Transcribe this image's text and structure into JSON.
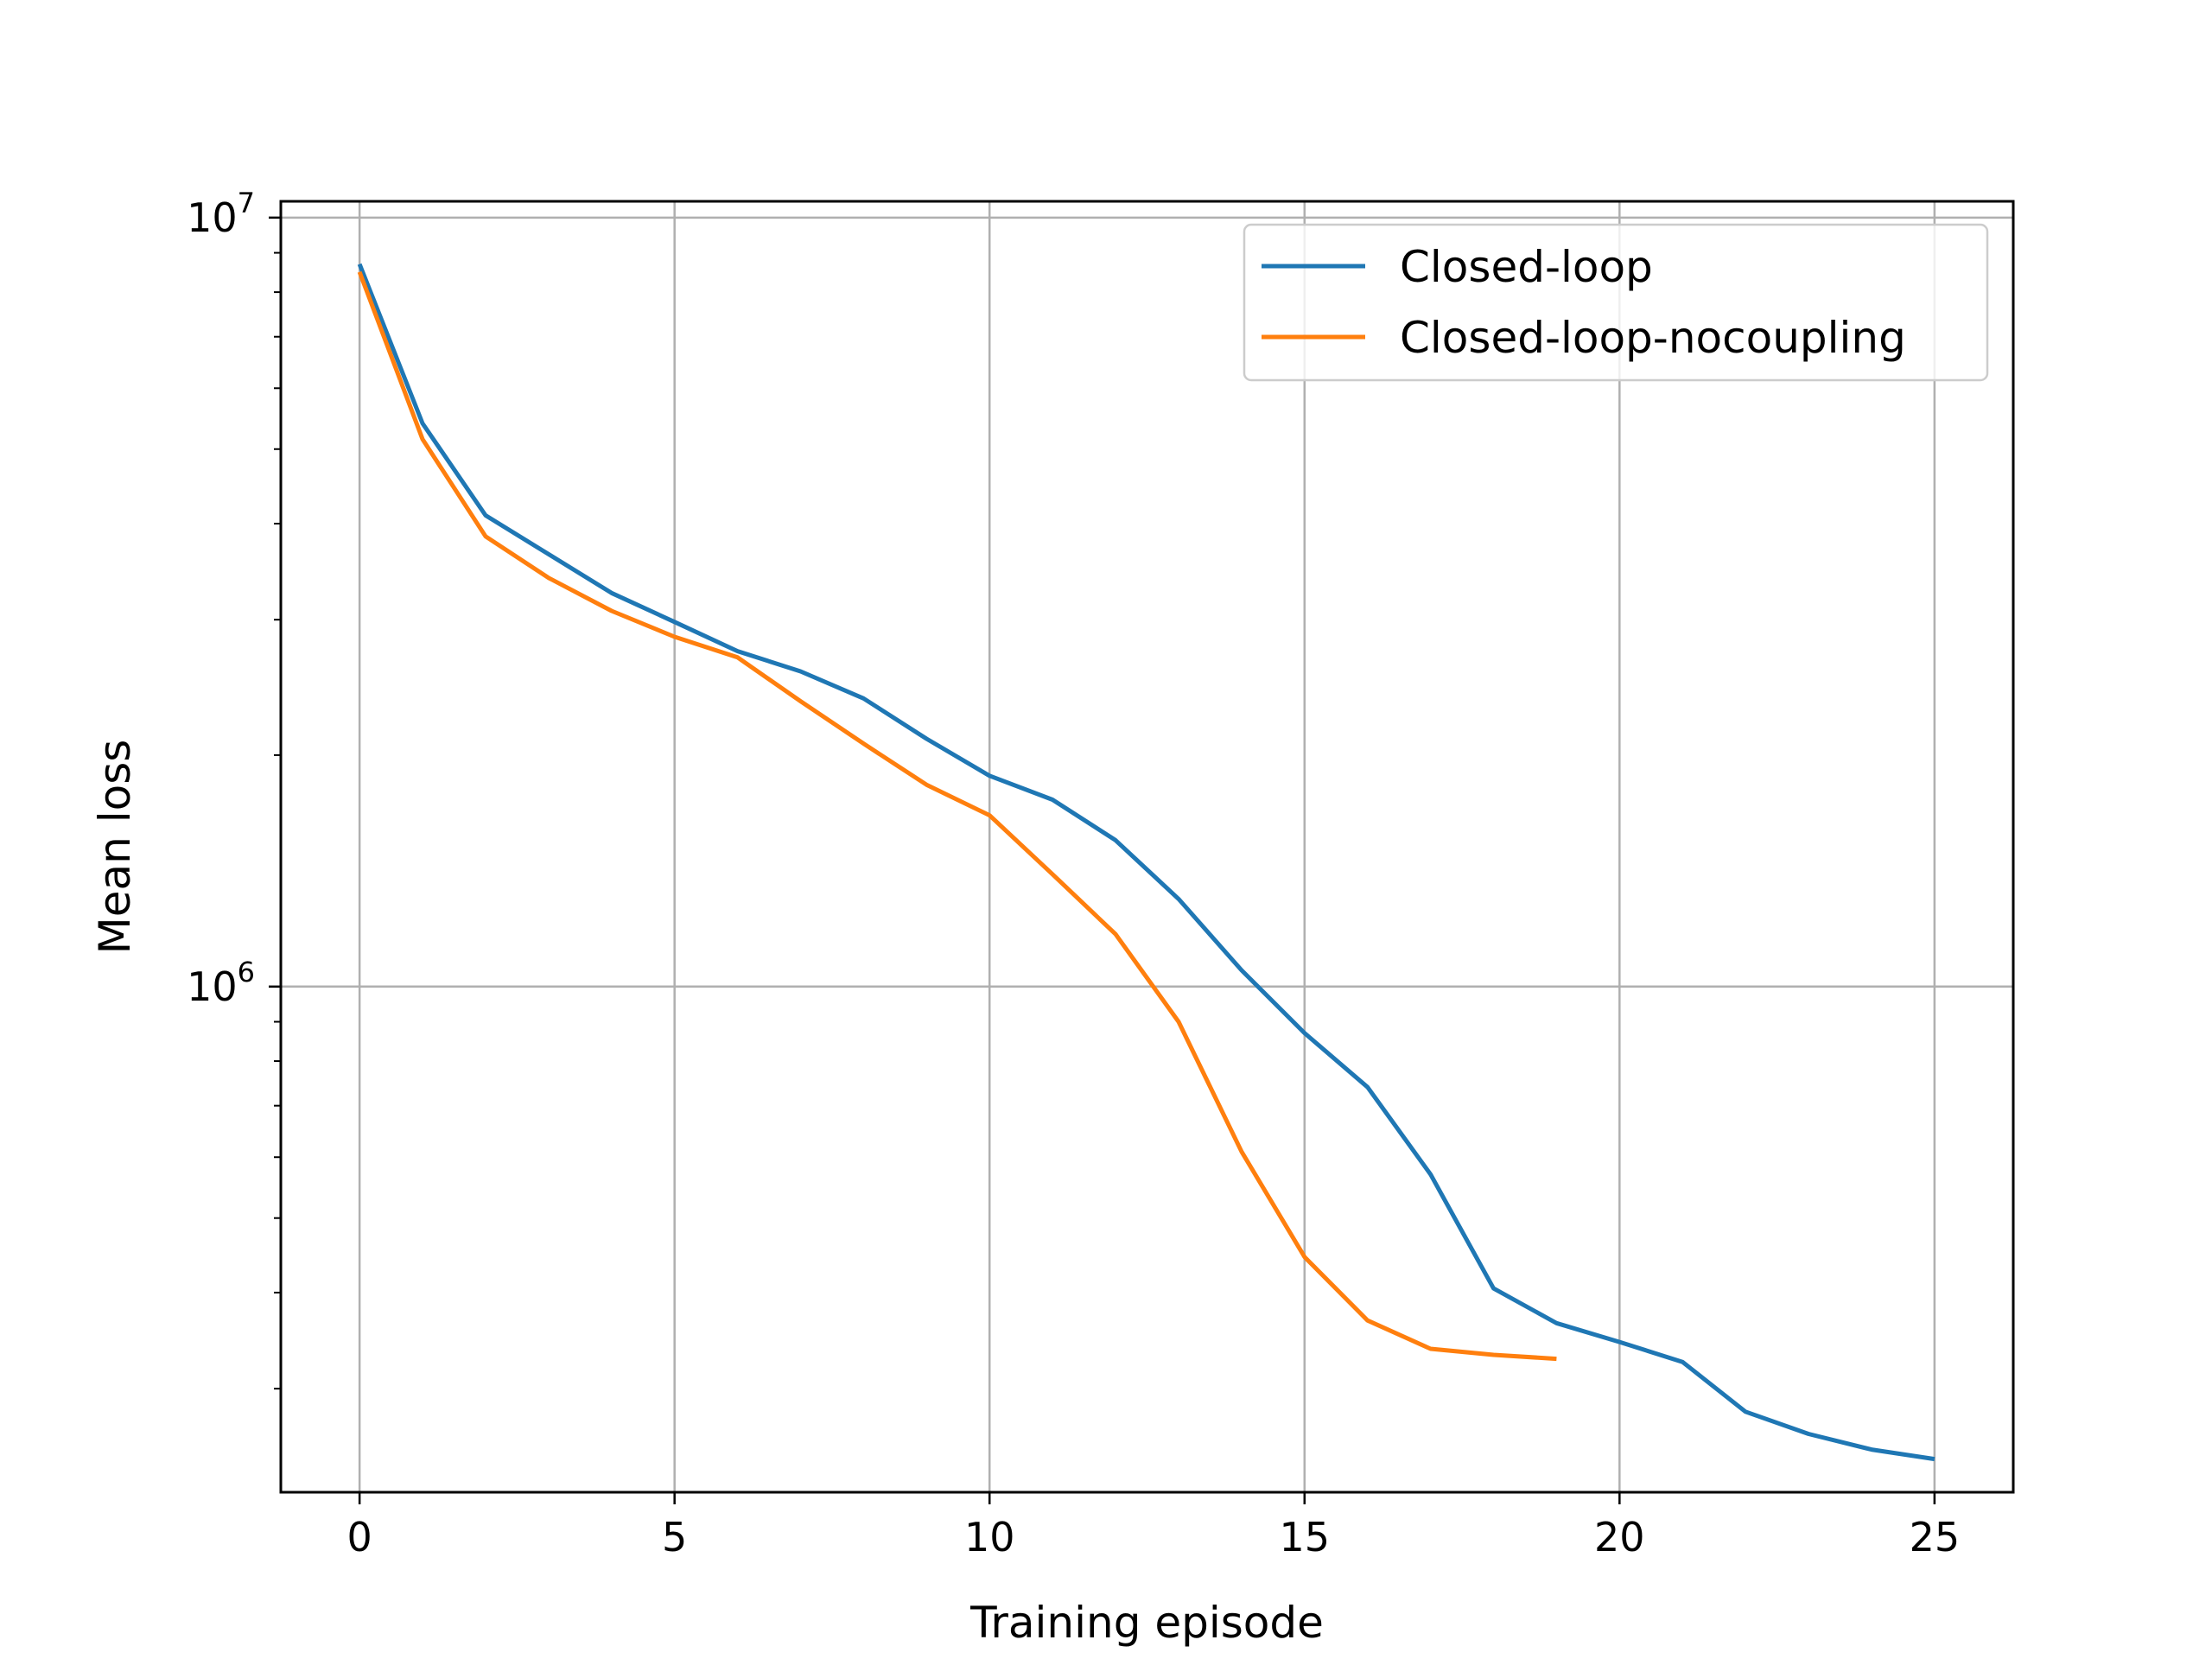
{
  "chart_data": {
    "type": "line",
    "title": "",
    "xlabel": "Training episode",
    "ylabel": "Mean loss",
    "yscale": "log",
    "xlim": [
      -1.25,
      26.25
    ],
    "ylim": [
      220000,
      10500000
    ],
    "xticks": [
      0,
      5,
      10,
      15,
      20,
      25
    ],
    "xtick_labels": [
      "0",
      "5",
      "10",
      "15",
      "20",
      "25"
    ],
    "yticks": [
      {
        "value": 1000000,
        "base": "10",
        "exp": "6"
      },
      {
        "value": 10000000,
        "base": "10",
        "exp": "7"
      }
    ],
    "grid": true,
    "legend_position": "top-right",
    "series": [
      {
        "name": "Closed-loop",
        "color": "#1f77b4",
        "x": [
          0,
          1,
          2,
          3,
          4,
          5,
          6,
          7,
          8,
          9,
          10,
          11,
          12,
          13,
          14,
          15,
          16,
          17,
          18,
          19,
          20,
          21,
          22,
          23,
          24,
          25
        ],
        "y": [
          8700000,
          5400000,
          4100000,
          3650000,
          3250000,
          2980000,
          2730000,
          2570000,
          2370000,
          2100000,
          1880000,
          1750000,
          1550000,
          1300000,
          1050000,
          870000,
          740000,
          570000,
          405000,
          365000,
          345000,
          325000,
          280000,
          262000,
          250000,
          243000
        ]
      },
      {
        "name": "Closed-loop-nocoupling",
        "color": "#ff7f0e",
        "x": [
          0,
          1,
          2,
          3,
          4,
          5,
          6,
          7,
          8,
          9,
          10,
          11,
          12,
          13,
          14,
          15,
          16,
          17,
          18,
          19
        ],
        "y": [
          8500000,
          5150000,
          3850000,
          3400000,
          3080000,
          2850000,
          2680000,
          2350000,
          2070000,
          1830000,
          1670000,
          1400000,
          1170000,
          900000,
          610000,
          445000,
          368000,
          338000,
          332000,
          328000
        ]
      }
    ]
  }
}
